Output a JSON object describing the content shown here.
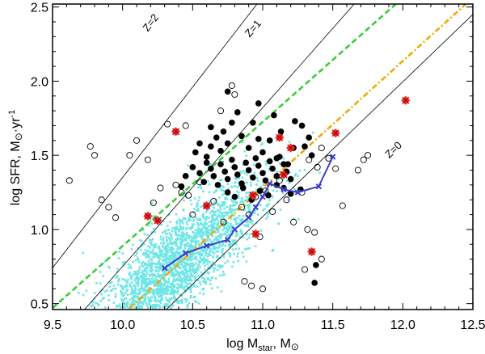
{
  "chart_data": {
    "type": "scatter",
    "title": "",
    "xlabel": {
      "main": "log M",
      "sub": "star",
      "tail": ", M",
      "sym": "⊙"
    },
    "ylabel": {
      "main": "log SFR, M",
      "sym": "⊙",
      "tail": "·yr",
      "sup": "-1"
    },
    "xlim": [
      9.5,
      12.5
    ],
    "ylim": [
      0.46,
      2.52
    ],
    "xticks": [
      "9.5",
      "10.0",
      "10.5",
      "11.0",
      "11.5",
      "12.0",
      "12.5"
    ],
    "yticks": [
      "0.5",
      "1.0",
      "1.5",
      "2.0",
      "2.5"
    ],
    "grid": false,
    "redshift_lines": [
      {
        "label": "Z=2",
        "x0": 9.45,
        "y0": 0.68,
        "x1": 11.0,
        "y1": 2.57,
        "color": "#000000"
      },
      {
        "label": "Z=1",
        "x0": 9.7,
        "y0": 0.43,
        "x1": 11.7,
        "y1": 2.57,
        "color": "#000000"
      },
      {
        "label": "Z=0",
        "x0": 10.3,
        "y0": 0.45,
        "x1": 12.5,
        "y1": 2.45,
        "color": "#000000"
      }
    ],
    "fit_lines": [
      {
        "name": "dashed-green",
        "color": "#33cc33",
        "x0": 9.5,
        "y0": 0.47,
        "x1": 11.95,
        "y1": 2.52
      },
      {
        "name": "dash-dot-orange",
        "color": "#f0a800",
        "x0": 10.05,
        "y0": 0.47,
        "x1": 12.45,
        "y1": 2.52
      }
    ],
    "series": [
      {
        "name": "filled black circles",
        "color": "#000000",
        "points": [
          [
            10.55,
            1.58
          ],
          [
            10.6,
            1.49
          ],
          [
            10.63,
            1.56
          ],
          [
            10.67,
            1.62
          ],
          [
            10.7,
            1.53
          ],
          [
            10.72,
            1.66
          ],
          [
            10.75,
            1.58
          ],
          [
            10.78,
            1.72
          ],
          [
            10.82,
            1.79
          ],
          [
            10.85,
            1.63
          ],
          [
            10.9,
            1.55
          ],
          [
            10.93,
            1.72
          ],
          [
            10.97,
            1.61
          ],
          [
            11.0,
            1.52
          ],
          [
            11.05,
            1.6
          ],
          [
            11.1,
            1.48
          ],
          [
            11.13,
            1.66
          ],
          [
            11.18,
            1.44
          ],
          [
            11.22,
            1.55
          ],
          [
            11.28,
            1.7
          ],
          [
            11.33,
            1.62
          ],
          [
            10.5,
            1.42
          ],
          [
            10.55,
            1.38
          ],
          [
            10.58,
            1.32
          ],
          [
            10.6,
            1.45
          ],
          [
            10.63,
            1.41
          ],
          [
            10.65,
            1.36
          ],
          [
            10.68,
            1.3
          ],
          [
            10.7,
            1.44
          ],
          [
            10.73,
            1.39
          ],
          [
            10.75,
            1.34
          ],
          [
            10.78,
            1.47
          ],
          [
            10.8,
            1.42
          ],
          [
            10.82,
            1.37
          ],
          [
            10.85,
            1.31
          ],
          [
            10.88,
            1.45
          ],
          [
            10.9,
            1.4
          ],
          [
            10.93,
            1.35
          ],
          [
            10.95,
            1.48
          ],
          [
            10.97,
            1.43
          ],
          [
            11.0,
            1.38
          ],
          [
            11.02,
            1.33
          ],
          [
            11.05,
            1.46
          ],
          [
            11.07,
            1.41
          ],
          [
            11.1,
            1.36
          ],
          [
            11.12,
            1.49
          ],
          [
            11.15,
            1.44
          ],
          [
            11.17,
            1.39
          ],
          [
            11.2,
            1.34
          ],
          [
            10.75,
            1.25
          ],
          [
            10.8,
            1.22
          ],
          [
            10.86,
            1.28
          ],
          [
            10.92,
            1.2
          ],
          [
            10.98,
            1.26
          ],
          [
            11.04,
            1.23
          ],
          [
            11.1,
            1.3
          ],
          [
            11.15,
            1.28
          ],
          [
            11.2,
            1.24
          ],
          [
            11.27,
            1.27
          ],
          [
            10.45,
            1.36
          ],
          [
            10.42,
            1.29
          ],
          [
            10.52,
            1.52
          ],
          [
            11.3,
            1.56
          ],
          [
            11.35,
            1.5
          ],
          [
            11.37,
            0.64
          ],
          [
            11.38,
            0.76
          ],
          [
            10.63,
            1.69
          ],
          [
            10.75,
            1.93
          ],
          [
            10.97,
            1.85
          ],
          [
            11.08,
            1.77
          ],
          [
            11.23,
            1.73
          ]
        ]
      },
      {
        "name": "open circles",
        "color": "#000000",
        "points": [
          [
            9.62,
            1.33
          ],
          [
            9.77,
            1.56
          ],
          [
            9.8,
            1.5
          ],
          [
            9.85,
            1.2
          ],
          [
            9.9,
            1.15
          ],
          [
            9.95,
            1.08
          ],
          [
            10.05,
            1.5
          ],
          [
            10.1,
            1.6
          ],
          [
            10.18,
            1.47
          ],
          [
            10.22,
            1.18
          ],
          [
            10.27,
            1.28
          ],
          [
            10.32,
            1.71
          ],
          [
            10.38,
            1.3
          ],
          [
            10.42,
            1.25
          ],
          [
            10.47,
            1.23
          ],
          [
            10.5,
            1.1
          ],
          [
            10.55,
            1.32
          ],
          [
            10.6,
            1.16
          ],
          [
            10.65,
            1.19
          ],
          [
            10.72,
            1.05
          ],
          [
            10.78,
            1.97
          ],
          [
            10.8,
            1.91
          ],
          [
            10.85,
            1.15
          ],
          [
            10.9,
            1.1
          ],
          [
            10.95,
            1.22
          ],
          [
            10.98,
            0.95
          ],
          [
            11.02,
            1.26
          ],
          [
            11.07,
            1.12
          ],
          [
            11.12,
            1.33
          ],
          [
            11.17,
            1.2
          ],
          [
            11.22,
            1.05
          ],
          [
            11.28,
            1.25
          ],
          [
            11.32,
            1.0
          ],
          [
            11.37,
            0.98
          ],
          [
            11.42,
            1.55
          ],
          [
            11.47,
            1.48
          ],
          [
            11.52,
            1.41
          ],
          [
            11.57,
            1.16
          ],
          [
            11.68,
            1.4
          ],
          [
            11.72,
            1.47
          ],
          [
            11.75,
            1.5
          ],
          [
            10.87,
            0.65
          ],
          [
            10.92,
            0.62
          ],
          [
            11.0,
            0.6
          ],
          [
            11.3,
            0.73
          ],
          [
            11.42,
            0.8
          ],
          [
            10.45,
            1.7
          ],
          [
            10.7,
            1.8
          ],
          [
            11.33,
            1.47
          ],
          [
            11.39,
            1.42
          ]
        ]
      },
      {
        "name": "red crosses",
        "color": "#ee2a2a",
        "points": [
          [
            10.38,
            1.66
          ],
          [
            10.18,
            1.09
          ],
          [
            10.25,
            1.06
          ],
          [
            10.6,
            1.16
          ],
          [
            10.93,
            1.23
          ],
          [
            10.95,
            0.97
          ],
          [
            11.12,
            1.62
          ],
          [
            11.15,
            1.37
          ],
          [
            11.2,
            1.55
          ],
          [
            11.35,
            0.85
          ],
          [
            11.52,
            1.65
          ],
          [
            12.02,
            1.87
          ]
        ]
      },
      {
        "name": "blue line",
        "color": "#3a3fcc",
        "points": [
          [
            10.3,
            0.74
          ],
          [
            10.45,
            0.84
          ],
          [
            10.6,
            0.89
          ],
          [
            10.75,
            0.93
          ],
          [
            10.8,
            1.0
          ],
          [
            10.9,
            1.08
          ],
          [
            10.95,
            1.15
          ],
          [
            11.0,
            1.22
          ],
          [
            11.05,
            1.31
          ],
          [
            11.15,
            1.27
          ],
          [
            11.25,
            1.25
          ],
          [
            11.4,
            1.29
          ],
          [
            11.5,
            1.49
          ]
        ]
      }
    ]
  }
}
